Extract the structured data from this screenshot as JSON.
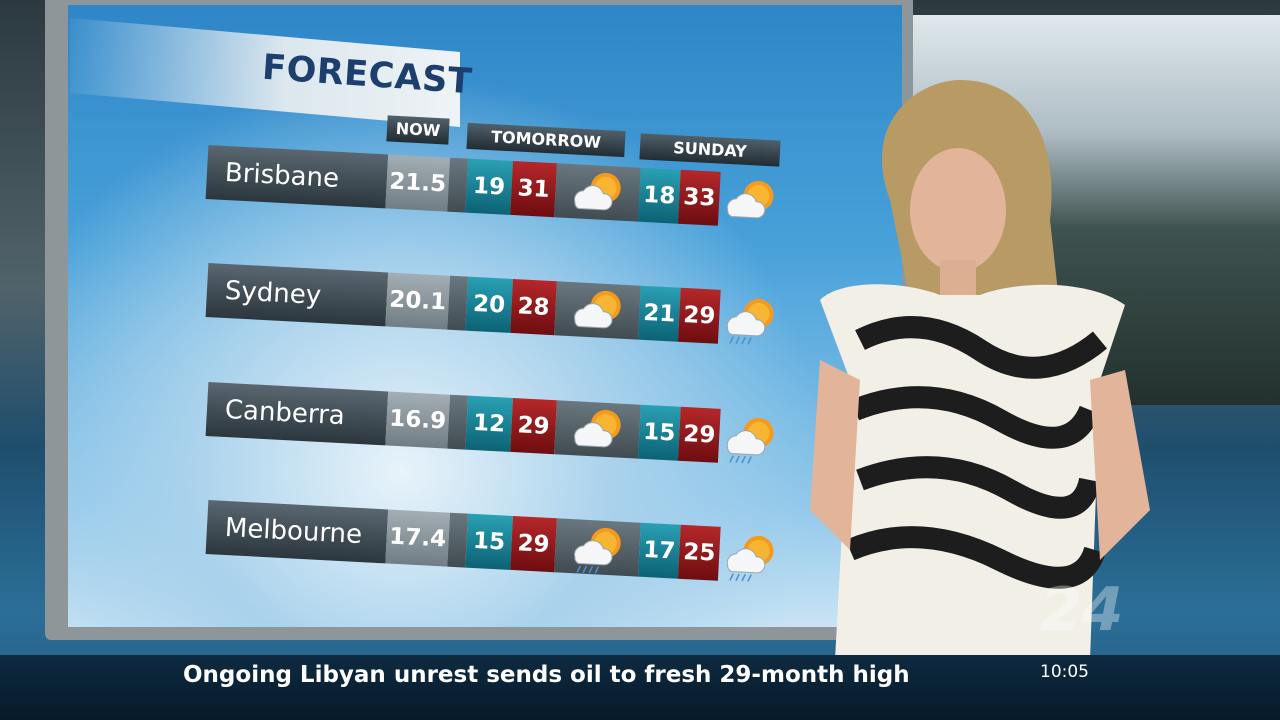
{
  "header": {
    "title": "FORECAST"
  },
  "columns": [
    "NOW",
    "TOMORROW",
    "SUNDAY"
  ],
  "rows": [
    [
      "Brisbane",
      21.5,
      19,
      31,
      18,
      33
    ],
    [
      "Sydney",
      20.1,
      20,
      28,
      21,
      29
    ],
    [
      "Canberra",
      16.9,
      12,
      29,
      15,
      29
    ],
    [
      "Melbourne",
      17.4,
      15,
      29,
      17,
      25
    ]
  ],
  "ticker": {
    "headline": "Ongoing Libyan unrest sends oil to fresh 29-month high",
    "time": "10:05"
  },
  "channel_logo": "24"
}
